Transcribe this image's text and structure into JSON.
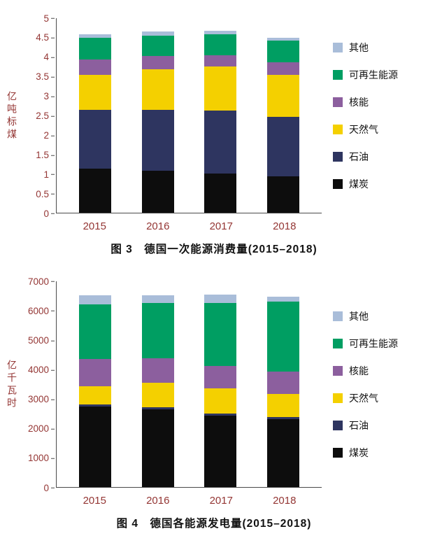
{
  "styles": {
    "axis_text_color": "#943634",
    "axis_line_color": "#4a4a4a",
    "caption_color": "#111111",
    "background": "#ffffff"
  },
  "chart_data": [
    {
      "type": "bar",
      "stacked": true,
      "title": "图 3　德国一次能源消费量(2015–2018)",
      "ylabel": "亿吨标煤",
      "categories": [
        "2015",
        "2016",
        "2017",
        "2018"
      ],
      "ymax": 5,
      "ylim": [
        0,
        5
      ],
      "yticks": [
        "0",
        "0.5",
        "1",
        "1.5",
        "2",
        "2.5",
        "3",
        "3.5",
        "4",
        "4.5",
        "5"
      ],
      "grid": false,
      "legend_position": "right",
      "legend_order_top_to_bottom": [
        "其他",
        "可再生能源",
        "核能",
        "天然气",
        "石油",
        "煤炭"
      ],
      "series": [
        {
          "name": "煤炭",
          "color": "#0d0d0d",
          "values": [
            1.13,
            1.08,
            1.0,
            0.93
          ]
        },
        {
          "name": "石油",
          "color": "#2e3560",
          "values": [
            1.52,
            1.57,
            1.62,
            1.53
          ]
        },
        {
          "name": "天然气",
          "color": "#f4d000",
          "values": [
            0.9,
            1.04,
            1.14,
            1.09
          ]
        },
        {
          "name": "核能",
          "color": "#8c5f9e",
          "values": [
            0.39,
            0.34,
            0.29,
            0.32
          ]
        },
        {
          "name": "可再生能源",
          "color": "#009e62",
          "values": [
            0.56,
            0.52,
            0.54,
            0.56
          ]
        },
        {
          "name": "其他",
          "color": "#a9bdd9",
          "values": [
            0.09,
            0.11,
            0.09,
            0.07
          ]
        }
      ]
    },
    {
      "type": "bar",
      "stacked": true,
      "title": "图 4　德国各能源发电量(2015–2018)",
      "ylabel": "亿千瓦时",
      "categories": [
        "2015",
        "2016",
        "2017",
        "2018"
      ],
      "ymax": 7000,
      "ylim": [
        0,
        7000
      ],
      "yticks": [
        "0",
        "1000",
        "2000",
        "3000",
        "4000",
        "5000",
        "6000",
        "7000"
      ],
      "grid": false,
      "legend_position": "right",
      "legend_order_top_to_bottom": [
        "其他",
        "可再生能源",
        "核能",
        "天然气",
        "石油",
        "煤炭"
      ],
      "series": [
        {
          "name": "煤炭",
          "color": "#0d0d0d",
          "values": [
            2730,
            2640,
            2420,
            2300
          ]
        },
        {
          "name": "石油",
          "color": "#2e3560",
          "values": [
            70,
            70,
            70,
            70
          ]
        },
        {
          "name": "天然气",
          "color": "#f4d000",
          "values": [
            620,
            830,
            860,
            790
          ]
        },
        {
          "name": "核能",
          "color": "#8c5f9e",
          "values": [
            930,
            830,
            760,
            780
          ]
        },
        {
          "name": "可再生能源",
          "color": "#009e62",
          "values": [
            1870,
            1900,
            2160,
            2380
          ]
        },
        {
          "name": "其他",
          "color": "#a9bdd9",
          "values": [
            310,
            260,
            280,
            160
          ]
        }
      ]
    }
  ]
}
